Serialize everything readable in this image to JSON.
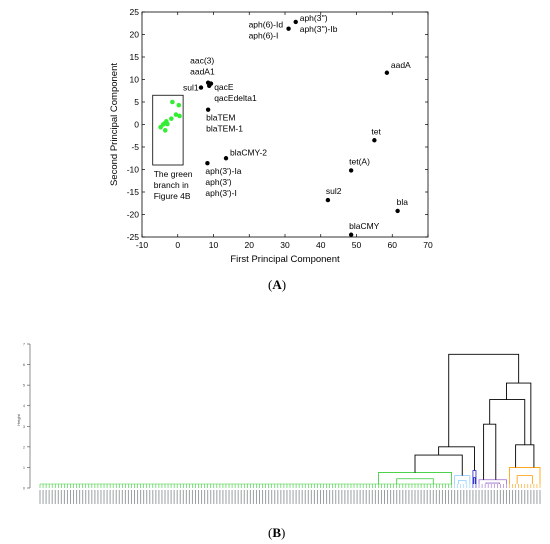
{
  "panel_a_label": "A",
  "panel_b_label": "B",
  "chart_data": [
    {
      "type": "scatter",
      "title": "",
      "xlabel": "First Principal Component",
      "ylabel": "Second Principal Component",
      "xlim": [
        -10,
        70
      ],
      "ylim": [
        -25,
        25
      ],
      "xticks": [
        "-10",
        "0",
        "10",
        "20",
        "30",
        "40",
        "50",
        "60",
        "70"
      ],
      "yticks": [
        "-25",
        "-20",
        "-15",
        "-10",
        "-5",
        "0",
        "5",
        "10",
        "15",
        "20",
        "25"
      ],
      "grid": false,
      "series": [
        {
          "color": "#000000",
          "points": [
            {
              "x": 33,
              "y": 22.8,
              "label": "aph(3'')\naph(3'')-Ib"
            },
            {
              "x": 31,
              "y": 21.3,
              "label": "aph(6)-Id\naph(6)-I"
            },
            {
              "x": 8.5,
              "y": 9.3,
              "label": "aac(3)\naadA1"
            },
            {
              "x": 9.3,
              "y": 9.1,
              "label": ""
            },
            {
              "x": 8.8,
              "y": 8.6,
              "label": "qacE\nqacEdelta1"
            },
            {
              "x": 6.5,
              "y": 8.2,
              "label": "sul1"
            },
            {
              "x": 8.5,
              "y": 3.3,
              "label": "blaTEM\nblaTEM-1"
            },
            {
              "x": 13.5,
              "y": -7.5,
              "label": "blaCMY-2"
            },
            {
              "x": 8.3,
              "y": -8.6,
              "label": "aph(3')-Ia\naph(3')\naph(3')-I"
            },
            {
              "x": 58.5,
              "y": 11.5,
              "label": "aadA"
            },
            {
              "x": 55,
              "y": -3.5,
              "label": "tet"
            },
            {
              "x": 48.5,
              "y": -10.2,
              "label": "tet(A)"
            },
            {
              "x": 42,
              "y": -16.8,
              "label": "sul2"
            },
            {
              "x": 61.5,
              "y": -19.2,
              "label": "bla"
            },
            {
              "x": 48.5,
              "y": -24.5,
              "label": "blaCMY"
            }
          ]
        },
        {
          "color": "#33ee33",
          "points": [
            {
              "x": -1.5,
              "y": 5.0
            },
            {
              "x": 0.3,
              "y": 4.3
            },
            {
              "x": -0.5,
              "y": 2.2
            },
            {
              "x": 0.5,
              "y": 1.9
            },
            {
              "x": -1.8,
              "y": 1.3
            },
            {
              "x": -3.2,
              "y": 0.7
            },
            {
              "x": -3.6,
              "y": 0.3
            },
            {
              "x": -2.9,
              "y": 0.1
            },
            {
              "x": -4.8,
              "y": -0.6
            },
            {
              "x": -3.5,
              "y": -1.3
            },
            {
              "x": -4.1,
              "y": 0.0
            }
          ]
        }
      ],
      "annotation": {
        "box_x": [
          -7,
          1.5
        ],
        "box_y": [
          -9,
          6.5
        ],
        "text": "The green\nbranch in\nFigure 4B"
      }
    },
    {
      "type": "dendrogram",
      "ylabel": "Height",
      "leaf_count": 165,
      "ylim": [
        0,
        7
      ],
      "yticks": [
        "0",
        "1",
        "2",
        "3",
        "4",
        "5",
        "6",
        "7"
      ],
      "clusters": [
        {
          "color": "#33cc33",
          "leaves": [
            111,
            135
          ],
          "height": 0.75
        },
        {
          "color": "#88ccff",
          "leaves": [
            136,
            141
          ],
          "height": 0.6
        },
        {
          "color": "#2222cc",
          "leaves": [
            142,
            143
          ],
          "height": 0.85
        },
        {
          "color": "#9966cc",
          "leaves": [
            144,
            153
          ],
          "height": 0.4
        },
        {
          "color": "#ff9900",
          "leaves": [
            154,
            164
          ],
          "height": 1.0
        }
      ],
      "links": [
        {
          "a": 123,
          "b": 138.5,
          "height": 1.6
        },
        {
          "a": 130.75,
          "b": 142.5,
          "height": 2.0
        },
        {
          "a": 148.5,
          "b": 159,
          "height": 2.2
        },
        {
          "a": 148.5,
          "b": 159,
          "height": 3.0
        },
        {
          "a": 136.6,
          "b": 153.8,
          "height": 5.5
        },
        {
          "a": 145.2,
          "b": 153.8,
          "height": 5.5
        }
      ]
    }
  ]
}
